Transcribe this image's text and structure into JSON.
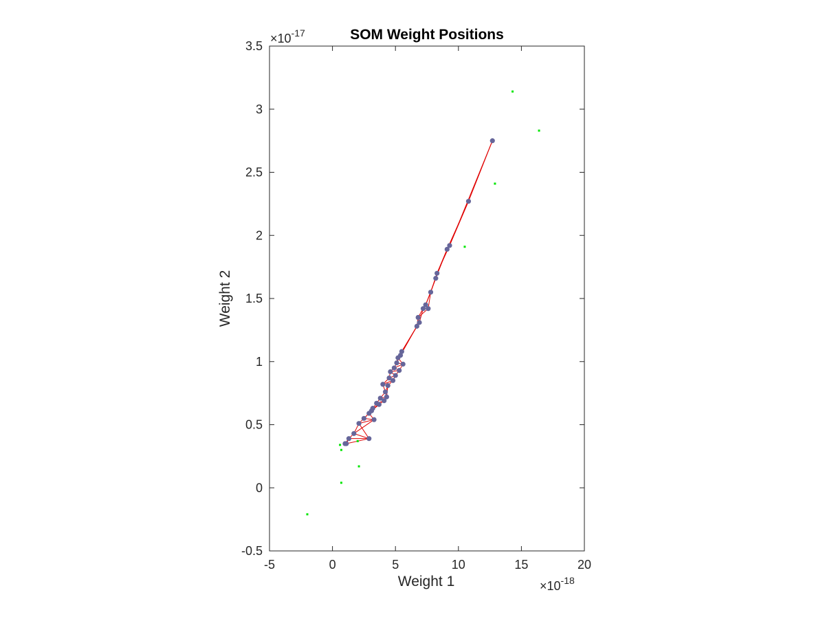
{
  "chart_data": {
    "type": "scatter",
    "title": "SOM Weight Positions",
    "xlabel": "Weight 1",
    "ylabel": "Weight 2",
    "xlim": [
      -5,
      20
    ],
    "ylim": [
      -0.5,
      3.5
    ],
    "x_ticks": [
      "-5",
      "0",
      "5",
      "10",
      "15",
      "20"
    ],
    "y_ticks": [
      "-0.5",
      "0",
      "0.5",
      "1",
      "1.5",
      "2",
      "2.5",
      "3",
      "3.5"
    ],
    "x_exponent": {
      "base": "×10",
      "power": "-18"
    },
    "y_exponent": {
      "base": "×10",
      "power": "-17"
    },
    "grid": false,
    "colors": {
      "neurons": "#66669a",
      "links": "#e00000",
      "inputs": "#00e600",
      "axes": "#262626"
    },
    "series": [
      {
        "role": "inputs",
        "marker": "dot",
        "points": [
          [
            -2.0,
            -0.21
          ],
          [
            0.7,
            0.04
          ],
          [
            0.7,
            0.3
          ],
          [
            0.6,
            0.34
          ],
          [
            2.0,
            0.37
          ],
          [
            2.1,
            0.17
          ],
          [
            10.5,
            1.91
          ],
          [
            12.9,
            2.41
          ],
          [
            14.3,
            3.14
          ],
          [
            16.4,
            2.83
          ]
        ]
      },
      {
        "role": "neurons",
        "marker": "circle",
        "points": [
          [
            1.0,
            0.35
          ],
          [
            1.1,
            0.35
          ],
          [
            1.3,
            0.39
          ],
          [
            1.7,
            0.43
          ],
          [
            2.1,
            0.51
          ],
          [
            2.5,
            0.55
          ],
          [
            2.9,
            0.59
          ],
          [
            3.1,
            0.61
          ],
          [
            2.9,
            0.39
          ],
          [
            3.3,
            0.54
          ],
          [
            3.2,
            0.63
          ],
          [
            3.5,
            0.67
          ],
          [
            3.7,
            0.66
          ],
          [
            3.8,
            0.71
          ],
          [
            4.0,
            0.82
          ],
          [
            4.1,
            0.69
          ],
          [
            4.2,
            0.76
          ],
          [
            4.3,
            0.72
          ],
          [
            4.4,
            0.81
          ],
          [
            4.5,
            0.87
          ],
          [
            4.6,
            0.92
          ],
          [
            4.8,
            0.85
          ],
          [
            4.9,
            0.95
          ],
          [
            5.0,
            0.89
          ],
          [
            5.1,
            0.99
          ],
          [
            5.2,
            1.03
          ],
          [
            5.3,
            0.93
          ],
          [
            5.4,
            1.05
          ],
          [
            5.5,
            1.08
          ],
          [
            5.6,
            0.98
          ],
          [
            6.7,
            1.28
          ],
          [
            6.8,
            1.35
          ],
          [
            6.9,
            1.31
          ],
          [
            7.2,
            1.42
          ],
          [
            7.4,
            1.45
          ],
          [
            7.6,
            1.42
          ],
          [
            7.8,
            1.55
          ],
          [
            8.2,
            1.66
          ],
          [
            8.3,
            1.7
          ],
          [
            9.1,
            1.89
          ],
          [
            9.3,
            1.92
          ],
          [
            10.8,
            2.27
          ],
          [
            12.7,
            2.75
          ]
        ]
      }
    ]
  }
}
